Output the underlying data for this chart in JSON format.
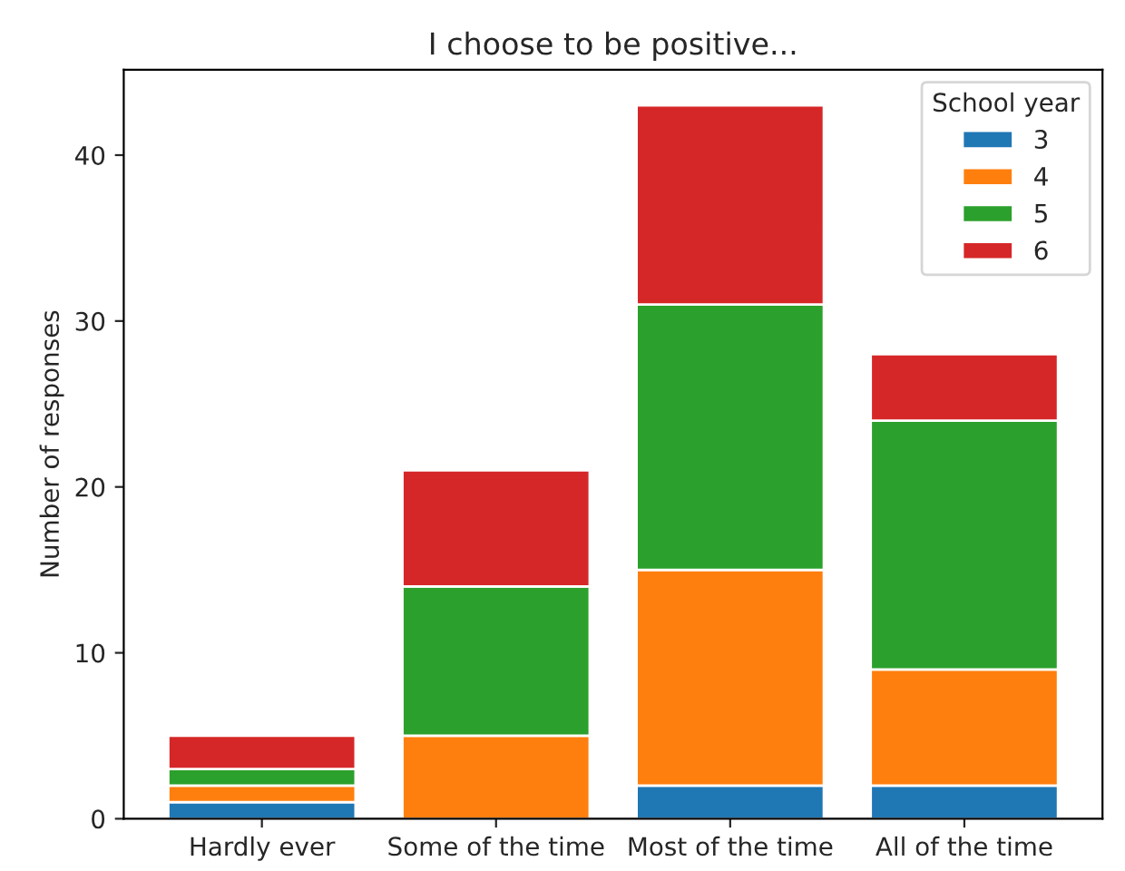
{
  "chart_data": {
    "type": "bar",
    "title": "I choose to be positive...",
    "ylabel": "Number of responses",
    "legend_title": "School year",
    "categories": [
      "Hardly ever",
      "Some of the time",
      "Most of the time",
      "All of the time"
    ],
    "stacked": true,
    "series": [
      {
        "name": "3",
        "color": "#1f77b4",
        "values": [
          1,
          0,
          2,
          2
        ]
      },
      {
        "name": "4",
        "color": "#ff7f0e",
        "values": [
          1,
          5,
          13,
          7
        ]
      },
      {
        "name": "5",
        "color": "#2ca02c",
        "values": [
          1,
          9,
          16,
          15
        ]
      },
      {
        "name": "6",
        "color": "#d62728",
        "values": [
          2,
          7,
          12,
          4
        ]
      }
    ],
    "ylim": [
      0,
      45.15
    ],
    "yticks": [
      0,
      10,
      20,
      30,
      40
    ],
    "grid": false,
    "legend": "top right"
  }
}
